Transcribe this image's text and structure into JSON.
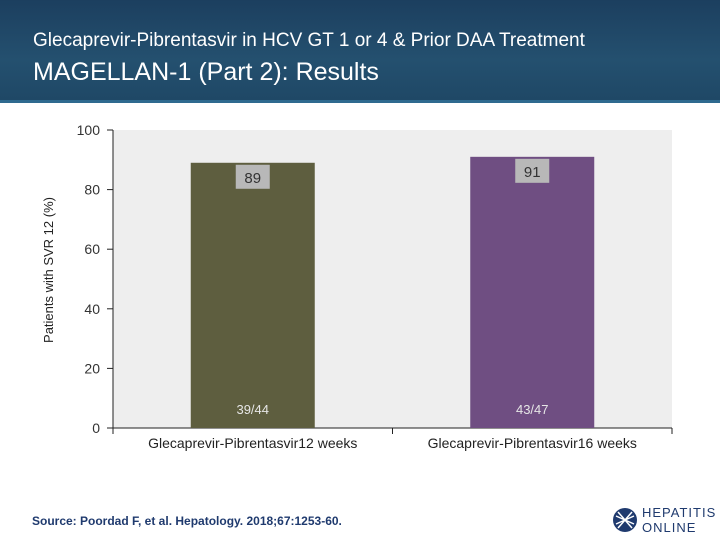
{
  "header": {
    "supertitle": "Glecaprevir-Pibrentasvir in HCV GT 1 or 4 & Prior DAA Treatment",
    "title": "MAGELLAN-1 (Part 2): Results"
  },
  "chart_data": {
    "type": "bar",
    "categories": [
      "Glecaprevir-Pibrentasvir12 weeks",
      "Glecaprevir-Pibrentasvir16 weeks"
    ],
    "values": [
      89,
      91
    ],
    "value_labels": [
      "89",
      "91"
    ],
    "count_labels": [
      "39/44",
      "43/47"
    ],
    "ylabel": "Patients with SVR 12 (%)",
    "ylim": [
      0,
      100
    ],
    "yticks": [
      0,
      20,
      40,
      60,
      80,
      100
    ],
    "bar_colors": [
      "#5e5e3f",
      "#6f4e82"
    ],
    "plot_background": "#eeeeee",
    "grid": false,
    "legend": "none"
  },
  "footer": {
    "source": "Source: Poordad F, et al. Hepatology. 2018;67:1253-60.",
    "logo_line1": "HEPATITIS C",
    "logo_line2": "ONLINE"
  }
}
